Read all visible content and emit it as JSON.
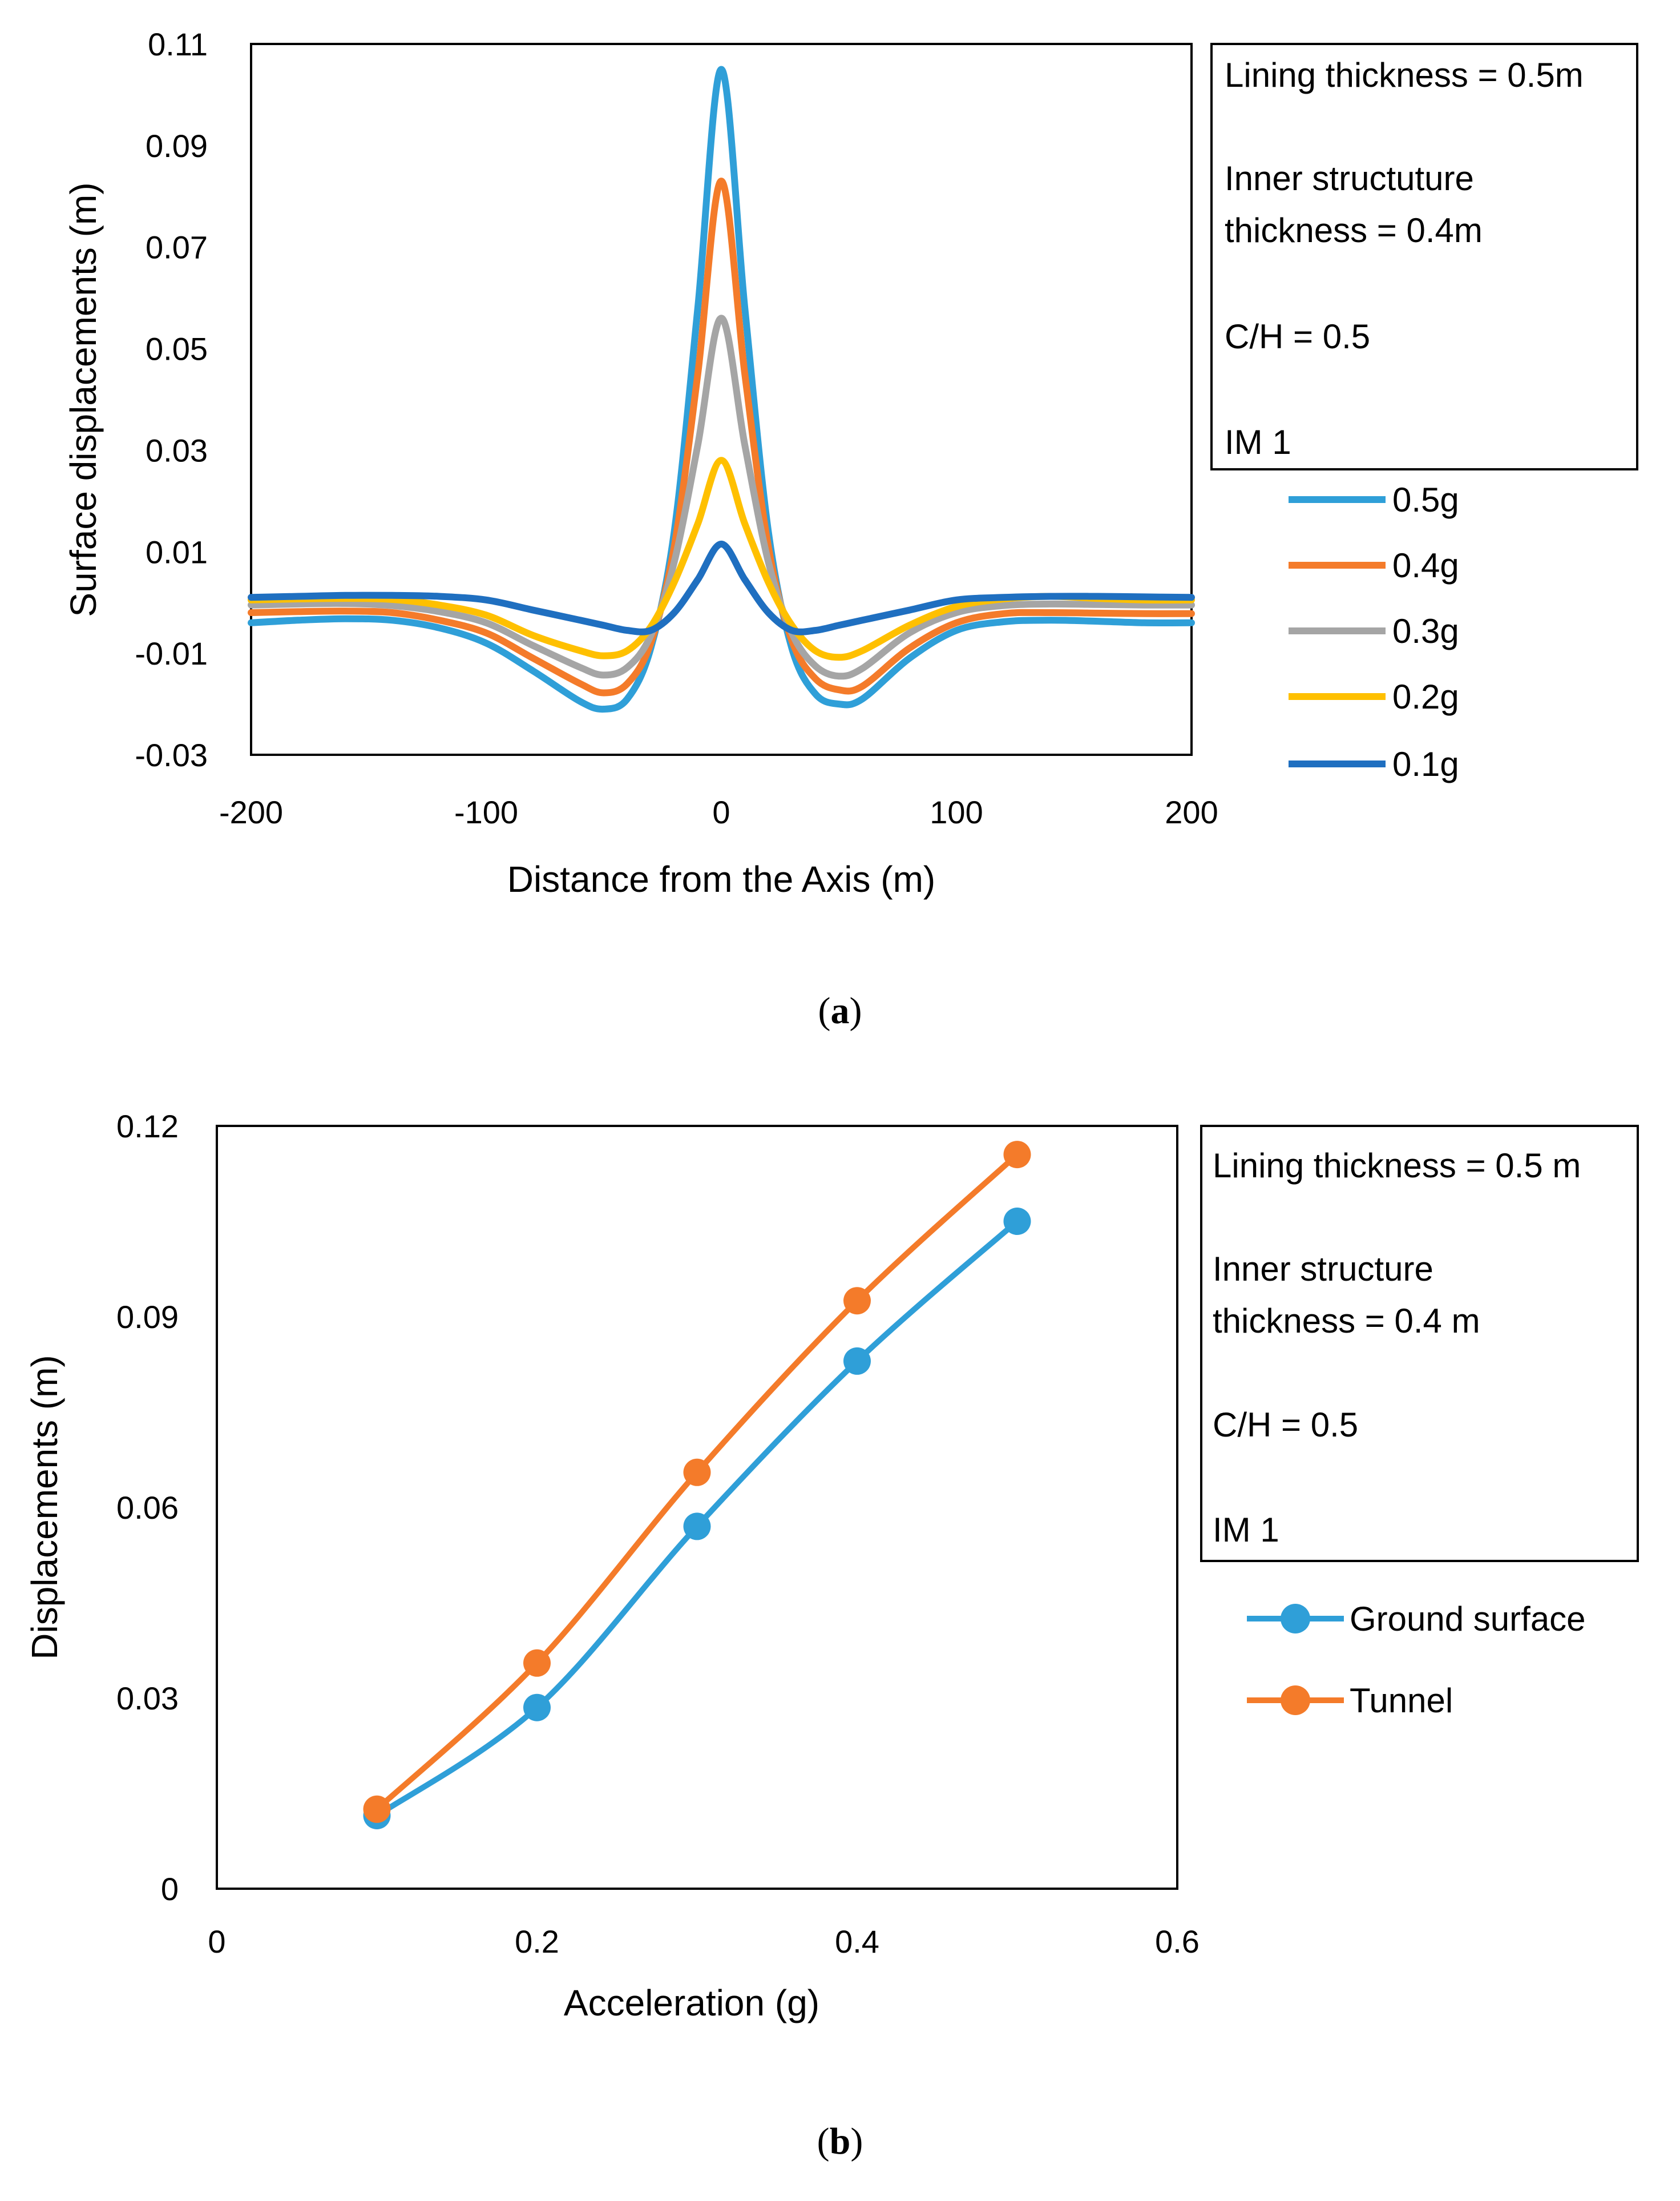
{
  "colors": {
    "c05": "#2f9fd8",
    "c04": "#f47b2a",
    "c03": "#a5a5a5",
    "c02": "#ffc000",
    "c01": "#1f6fc0",
    "ground": "#2f9fd8",
    "tunnel": "#f47b2a"
  },
  "captions": {
    "a_letter": "a",
    "b_letter": "b"
  },
  "chart_data": [
    {
      "id": "a",
      "type": "line",
      "xlabel": "Distance from the Axis (m)",
      "ylabel": "Surface displacements (m)",
      "xlim": [
        -200,
        200
      ],
      "ylim": [
        -0.03,
        0.11
      ],
      "xticks": [
        -200,
        -100,
        0,
        100,
        200
      ],
      "xtick_labels": [
        "-200",
        "-100",
        "0",
        "100",
        "200"
      ],
      "yticks": [
        -0.03,
        -0.01,
        0.01,
        0.03,
        0.05,
        0.07,
        0.09,
        0.11
      ],
      "ytick_labels": [
        "-0.03",
        "-0.01",
        "0.01",
        "0.03",
        "0.05",
        "0.07",
        "0.09",
        "0.11"
      ],
      "grid": false,
      "legend_position": "right",
      "annotation_lines": [
        "Lining thickness = 0.5m",
        "Inner structuture",
        "thickness = 0.4m",
        "C/H = 0.5",
        "IM 1"
      ],
      "x": [
        -200,
        -180,
        -160,
        -140,
        -120,
        -100,
        -80,
        -60,
        -50,
        -40,
        -30,
        -20,
        -10,
        0,
        10,
        20,
        30,
        40,
        50,
        60,
        80,
        100,
        120,
        140,
        160,
        180,
        200
      ],
      "series": [
        {
          "name": "0.5g",
          "color_key": "c05",
          "values": [
            -0.004,
            -0.0035,
            -0.0032,
            -0.0035,
            -0.005,
            -0.008,
            -0.0135,
            -0.0195,
            -0.021,
            -0.019,
            -0.009,
            0.014,
            0.058,
            0.105,
            0.058,
            0.014,
            -0.009,
            -0.018,
            -0.02,
            -0.019,
            -0.011,
            -0.0055,
            -0.0038,
            -0.0035,
            -0.0037,
            -0.004,
            -0.004
          ]
        },
        {
          "name": "0.4g",
          "color_key": "c04",
          "values": [
            -0.002,
            -0.0018,
            -0.0017,
            -0.002,
            -0.0035,
            -0.006,
            -0.011,
            -0.016,
            -0.0178,
            -0.016,
            -0.008,
            0.011,
            0.045,
            0.083,
            0.045,
            0.011,
            -0.0075,
            -0.015,
            -0.0172,
            -0.0165,
            -0.009,
            -0.004,
            -0.0022,
            -0.002,
            -0.0021,
            -0.0022,
            -0.0022
          ]
        },
        {
          "name": "0.3g",
          "color_key": "c03",
          "values": [
            -0.0005,
            -0.0003,
            -0.0002,
            -0.0006,
            -0.0018,
            -0.004,
            -0.0085,
            -0.0128,
            -0.0143,
            -0.0128,
            -0.0065,
            0.008,
            0.031,
            0.056,
            0.031,
            0.008,
            -0.006,
            -0.0125,
            -0.0145,
            -0.013,
            -0.006,
            -0.002,
            -0.0006,
            -0.0003,
            -0.0004,
            -0.0005,
            -0.0005
          ]
        },
        {
          "name": "0.2g",
          "color_key": "c02",
          "values": [
            0.0005,
            0.0007,
            0.0008,
            0.0006,
            -0.0005,
            -0.0025,
            -0.0065,
            -0.0095,
            -0.0105,
            -0.0095,
            -0.0048,
            0.004,
            0.0155,
            0.028,
            0.0155,
            0.004,
            -0.0045,
            -0.0095,
            -0.0108,
            -0.0095,
            -0.0045,
            -0.0008,
            0.0007,
            0.0012,
            0.0008,
            0.0005,
            0.0005
          ]
        },
        {
          "name": "0.1g",
          "color_key": "c01",
          "values": [
            0.001,
            0.0012,
            0.0014,
            0.0014,
            0.0012,
            0.0005,
            -0.0015,
            -0.0035,
            -0.0045,
            -0.0055,
            -0.0055,
            -0.002,
            0.0045,
            0.0115,
            0.0045,
            -0.002,
            -0.0055,
            -0.0055,
            -0.0045,
            -0.0035,
            -0.0015,
            0.0005,
            0.001,
            0.0012,
            0.0012,
            0.0011,
            0.001
          ]
        }
      ]
    },
    {
      "id": "b",
      "type": "line",
      "xlabel": "Acceleration (g)",
      "ylabel": "Displacements (m)",
      "xlim": [
        0,
        0.6
      ],
      "ylim": [
        0,
        0.12
      ],
      "xticks": [
        0,
        0.2,
        0.4,
        0.6
      ],
      "xtick_labels": [
        "0",
        "0.2",
        "0.4",
        "0.6"
      ],
      "yticks": [
        0,
        0.03,
        0.06,
        0.09,
        0.12
      ],
      "ytick_labels": [
        "0",
        "0.03",
        "0.06",
        "0.09",
        "0.12"
      ],
      "grid": false,
      "legend_position": "right",
      "annotation_lines": [
        "Lining thickness = 0.5 m",
        "Inner structure",
        "thickness = 0.4 m",
        "C/H = 0.5",
        "IM 1"
      ],
      "x": [
        0.1,
        0.2,
        0.3,
        0.4,
        0.5
      ],
      "series": [
        {
          "name": "Ground surface",
          "color_key": "ground",
          "values": [
            0.0115,
            0.0285,
            0.057,
            0.083,
            0.105
          ]
        },
        {
          "name": "Tunnel",
          "color_key": "tunnel",
          "values": [
            0.0125,
            0.0355,
            0.0655,
            0.0925,
            0.1155
          ]
        }
      ]
    }
  ]
}
